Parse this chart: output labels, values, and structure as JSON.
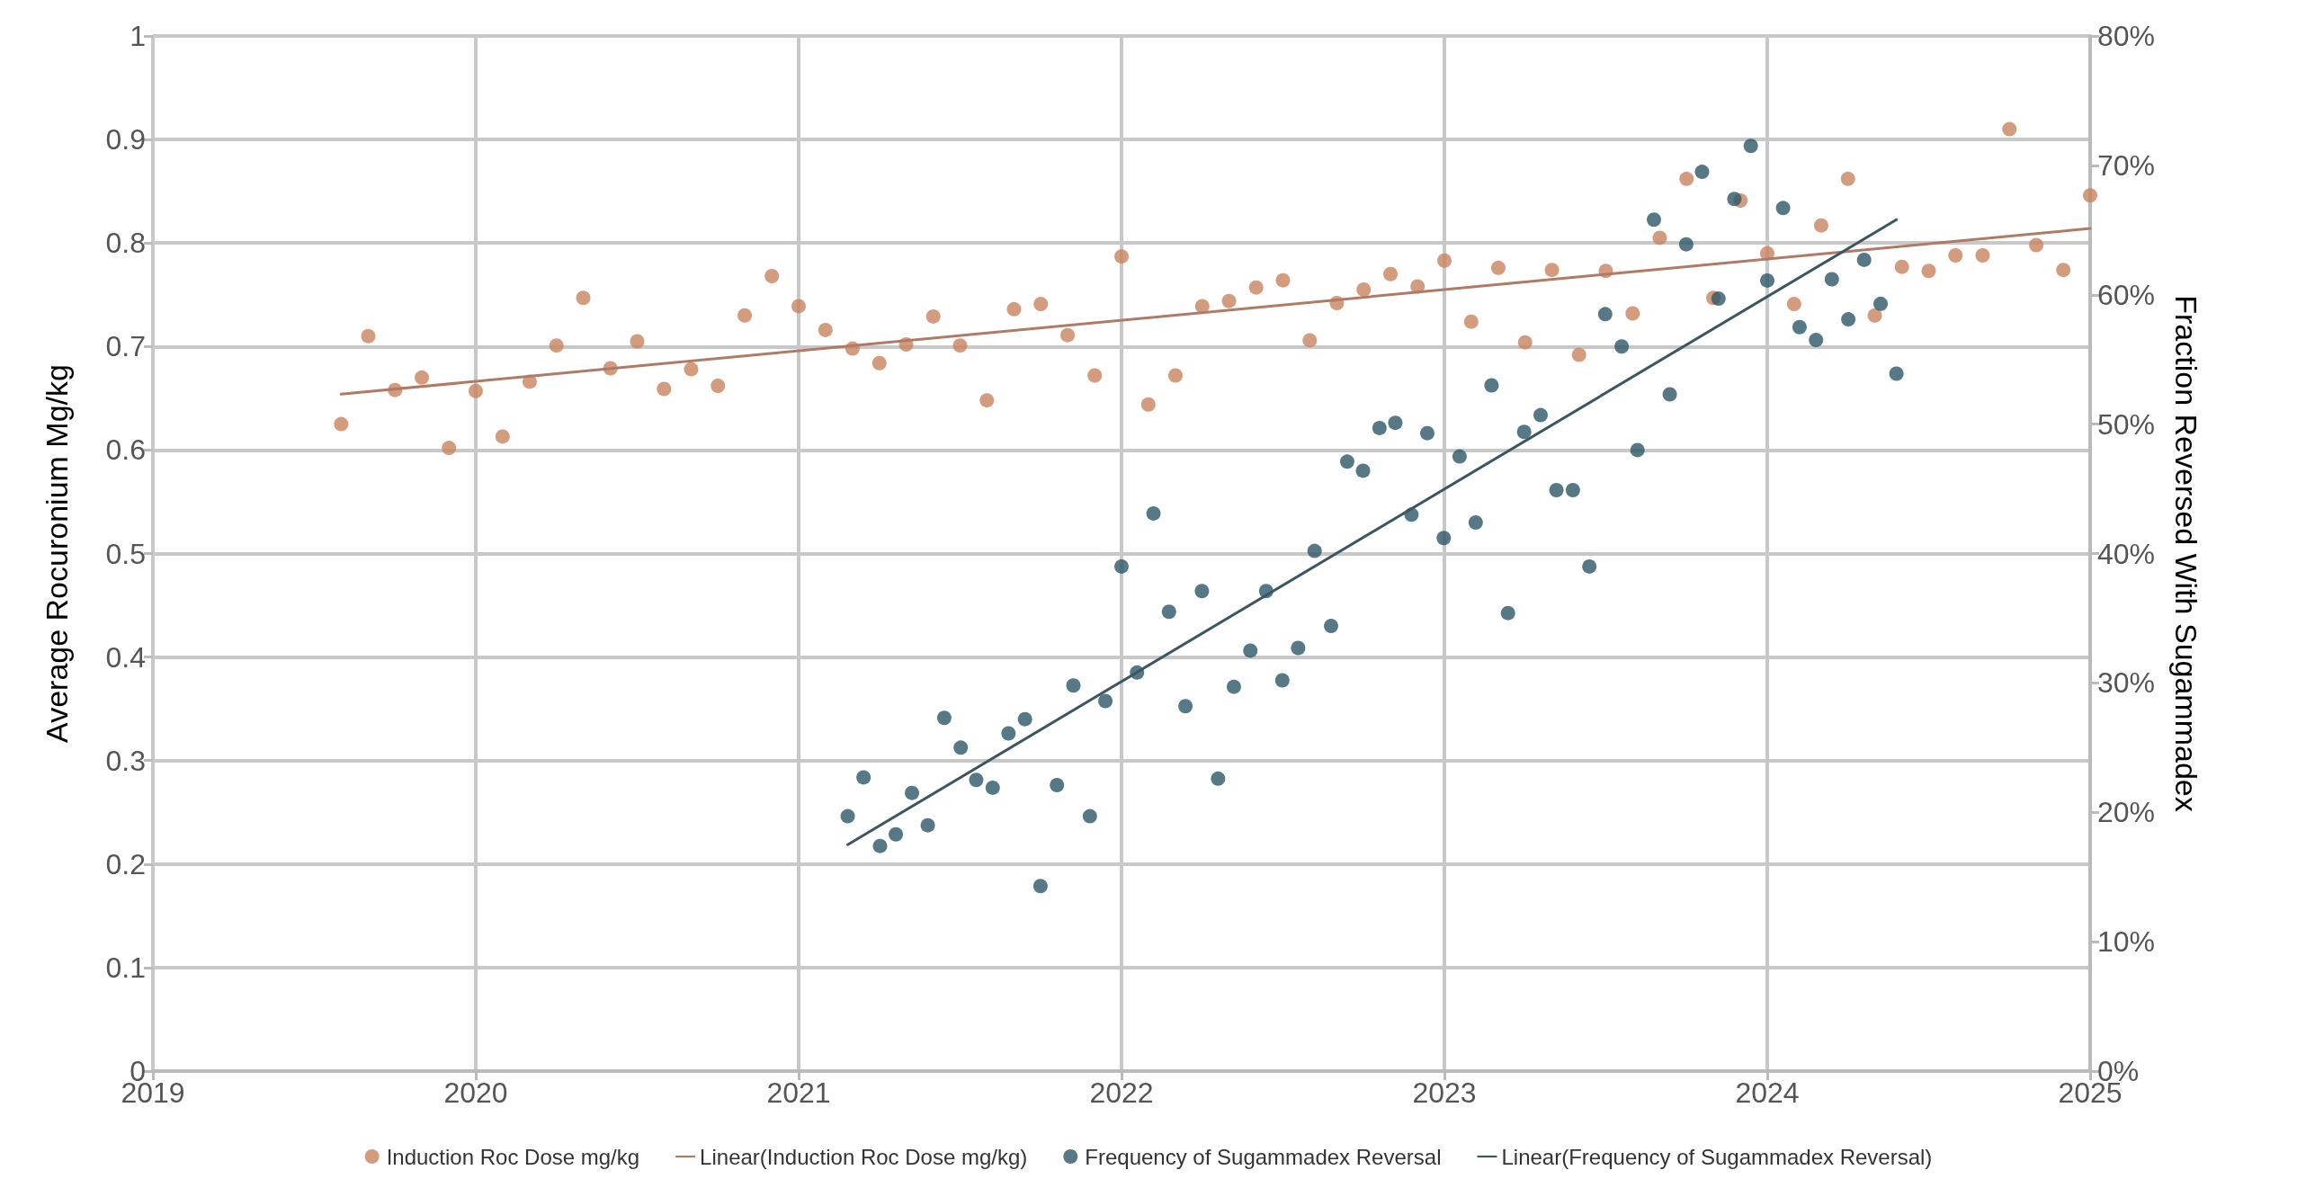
{
  "chart_data": {
    "type": "scatter",
    "ylabel": "Average Rocuronium Mg/kg",
    "y2label": "Fraction Reversed With Sugammadex",
    "xlim": [
      2019,
      2025
    ],
    "xticks": [
      2019,
      2020,
      2021,
      2022,
      2023,
      2024,
      2025
    ],
    "ylim": [
      0,
      1
    ],
    "yticks": [
      0,
      0.1,
      0.2,
      0.3,
      0.4,
      0.5,
      0.6,
      0.7,
      0.8,
      0.9,
      1
    ],
    "y2lim": [
      0,
      80
    ],
    "y2ticks": [
      {
        "value": 0,
        "label": "0%"
      },
      {
        "value": 10,
        "label": "10%"
      },
      {
        "value": 20,
        "label": "20%"
      },
      {
        "value": 30,
        "label": "30%"
      },
      {
        "value": 40,
        "label": "40%"
      },
      {
        "value": 50,
        "label": "50%"
      },
      {
        "value": 60,
        "label": "60%"
      },
      {
        "value": 70,
        "label": "70%"
      },
      {
        "value": 80,
        "label": "80%"
      }
    ],
    "grid": true,
    "legend": "bottom",
    "series": [
      {
        "name": "Induction Roc Dose mg/kg",
        "marker": "circle",
        "color": "#c8835f",
        "x": [
          2019.583,
          2019.667,
          2019.75,
          2019.833,
          2019.917,
          2020.0,
          2020.083,
          2020.167,
          2020.25,
          2020.333,
          2020.417,
          2020.5,
          2020.583,
          2020.667,
          2020.75,
          2020.833,
          2020.917,
          2021.0,
          2021.083,
          2021.167,
          2021.25,
          2021.333,
          2021.417,
          2021.5,
          2021.583,
          2021.667,
          2021.75,
          2021.833,
          2021.917,
          2022.0,
          2022.083,
          2022.167,
          2022.25,
          2022.333,
          2022.417,
          2022.5,
          2022.583,
          2022.667,
          2022.75,
          2022.833,
          2022.917,
          2023.0,
          2023.083,
          2023.167,
          2023.25,
          2023.333,
          2023.417,
          2023.5,
          2023.583,
          2023.667,
          2023.75,
          2023.833,
          2023.917,
          2024.0,
          2024.083,
          2024.167,
          2024.25,
          2024.333,
          2024.417,
          2024.5,
          2024.583,
          2024.667,
          2024.75,
          2024.833,
          2024.917,
          2025.0
        ],
        "values": [
          0.625,
          0.71,
          0.658,
          0.67,
          0.602,
          0.657,
          0.613,
          0.666,
          0.701,
          0.747,
          0.679,
          0.705,
          0.659,
          0.678,
          0.662,
          0.73,
          0.768,
          0.739,
          0.716,
          0.698,
          0.684,
          0.702,
          0.729,
          0.701,
          0.648,
          0.736,
          0.741,
          0.711,
          0.672,
          0.787,
          0.644,
          0.672,
          0.739,
          0.744,
          0.757,
          0.764,
          0.706,
          0.742,
          0.755,
          0.77,
          0.758,
          0.783,
          0.724,
          0.776,
          0.704,
          0.774,
          0.692,
          0.773,
          0.732,
          0.805,
          0.862,
          0.747,
          0.841,
          0.79,
          0.741,
          0.817,
          0.862,
          0.73,
          0.777,
          0.773,
          0.788,
          0.788,
          0.91,
          0.798,
          0.774,
          0.846
        ]
      },
      {
        "name": "Linear(Induction Roc Dose mg/kg)",
        "type": "line",
        "marker": "none",
        "color": "#b07b66",
        "x": [
          2019.583,
          2025.0
        ],
        "values": [
          0.654,
          0.814
        ]
      },
      {
        "name": "Frequency of Sugammadex Reversal",
        "marker": "circle",
        "axis": "y2",
        "color": "#2d5766",
        "x": [
          2021.152,
          2021.201,
          2021.252,
          2021.301,
          2021.351,
          2021.4,
          2021.451,
          2021.502,
          2021.55,
          2021.601,
          2021.65,
          2021.701,
          2021.749,
          2021.8,
          2021.851,
          2021.902,
          2021.95,
          2022.0,
          2022.048,
          2022.099,
          2022.147,
          2022.198,
          2022.249,
          2022.299,
          2022.348,
          2022.399,
          2022.448,
          2022.498,
          2022.547,
          2022.598,
          2022.649,
          2022.699,
          2022.748,
          2022.799,
          2022.848,
          2022.898,
          2022.947,
          2022.998,
          2023.047,
          2023.097,
          2023.146,
          2023.197,
          2023.247,
          2023.298,
          2023.347,
          2023.398,
          2023.449,
          2023.498,
          2023.549,
          2023.598,
          2023.649,
          2023.698,
          2023.749,
          2023.798,
          2023.849,
          2023.898,
          2023.949,
          2024.0,
          2024.049,
          2024.1,
          2024.151,
          2024.2,
          2024.251,
          2024.3,
          2024.351,
          2024.4
        ],
        "values": [
          19.7,
          22.7,
          17.4,
          18.3,
          21.5,
          19.0,
          27.3,
          25.0,
          22.5,
          21.9,
          26.1,
          27.2,
          14.3,
          22.1,
          29.8,
          19.7,
          28.6,
          39.0,
          30.8,
          43.1,
          35.5,
          28.2,
          37.1,
          22.6,
          29.7,
          32.5,
          37.1,
          30.2,
          32.7,
          40.2,
          34.4,
          47.1,
          46.4,
          49.7,
          50.1,
          43.0,
          49.3,
          41.2,
          47.5,
          42.4,
          53.0,
          35.4,
          49.4,
          50.7,
          44.9,
          44.9,
          39.0,
          58.5,
          56.0,
          48.0,
          65.8,
          52.3,
          63.9,
          69.5,
          59.7,
          67.4,
          71.5,
          61.1,
          66.7,
          57.5,
          56.5,
          61.2,
          58.1,
          62.7,
          59.3,
          53.9
        ]
      },
      {
        "name": "Linear(Frequency of Sugammadex Reversal)",
        "type": "line",
        "marker": "none",
        "axis": "y2",
        "color": "#3b5660",
        "x": [
          2021.152,
          2024.4
        ],
        "values": [
          17.5,
          65.8
        ]
      }
    ]
  }
}
